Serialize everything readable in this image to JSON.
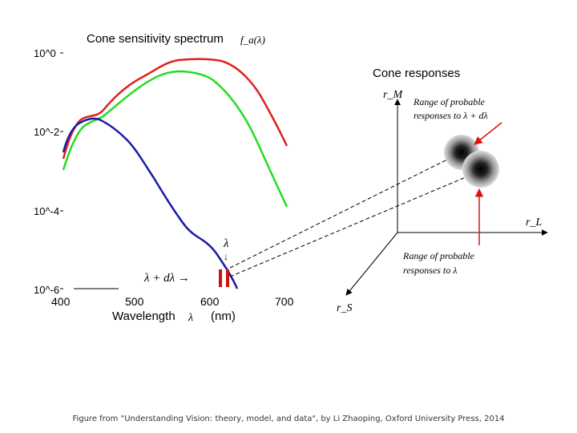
{
  "left_panel": {
    "title": "Cone sensitivity spectrum",
    "title_math": "f_a(λ)",
    "y_ticks": [
      "10^0",
      "10^-2",
      "10^-4",
      "10^-6"
    ],
    "x_ticks": [
      "400",
      "500",
      "600",
      "700"
    ],
    "x_label": "Wavelength",
    "x_label_symbol": "λ",
    "x_label_unit": "(nm)",
    "lambda_label": "λ",
    "down_arrow": "↓",
    "lambda_dlambda_label": "λ + dλ →"
  },
  "right_panel": {
    "title": "Cone responses",
    "axis_m": "r_M",
    "axis_l": "r_L",
    "axis_s": "r_S",
    "upper_label": "Range of probable responses to λ + dλ",
    "upper_label_line1": "Range of probable",
    "upper_label_line2": "responses to λ + dλ",
    "lower_label": "Range of probable responses to λ",
    "lower_label_line1": "Range of probable",
    "lower_label_line2": "responses to λ"
  },
  "colors": {
    "red_curve": "#e02020",
    "green_curve": "#22dd22",
    "blue_curve": "#1a1aa8",
    "marker": "#cc1111",
    "red_arrow": "#dd1111"
  },
  "caption": "Figure from \"Understanding Vision: theory, model, and data\", by Li Zhaoping, Oxford University Press, 2014"
}
